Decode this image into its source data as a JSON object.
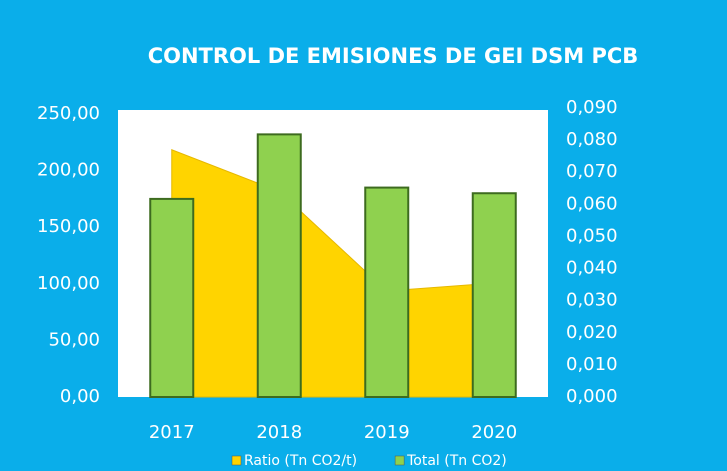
{
  "chart_data": {
    "type": "bar",
    "title": "CONTROL DE EMISIONES DE GEI DSM PCB",
    "categories": [
      "2017",
      "2018",
      "2019",
      "2020"
    ],
    "series": [
      {
        "name": "Ratio (Tn CO2/t)",
        "type": "area",
        "axis": "y2",
        "color": "#ffd400",
        "values": [
          0.077,
          0.064,
          0.033,
          0.0355
        ]
      },
      {
        "name": "Total (Tn CO2)",
        "type": "bar",
        "color": "#8fd14f",
        "values": [
          175,
          232,
          185,
          180
        ]
      }
    ],
    "ylim": [
      0,
      250
    ],
    "yticks": [
      {
        "value": 0,
        "label": "0,00"
      },
      {
        "value": 50,
        "label": "50,00"
      },
      {
        "value": 100,
        "label": "100,00"
      },
      {
        "value": 150,
        "label": "150,00"
      },
      {
        "value": 200,
        "label": "200,00"
      },
      {
        "value": 250,
        "label": "250,00"
      }
    ],
    "y2lim": [
      0,
      0.09
    ],
    "y2ticks": [
      {
        "value": 0,
        "label": "0,000"
      },
      {
        "value": 0.01,
        "label": "0,010"
      },
      {
        "value": 0.02,
        "label": "0,020"
      },
      {
        "value": 0.03,
        "label": "0,030"
      },
      {
        "value": 0.04,
        "label": "0,040"
      },
      {
        "value": 0.05,
        "label": "0,050"
      },
      {
        "value": 0.06,
        "label": "0,060"
      },
      {
        "value": 0.07,
        "label": "0,070"
      },
      {
        "value": 0.08,
        "label": "0,080"
      },
      {
        "value": 0.09,
        "label": "0,090"
      }
    ],
    "legend": "bottom"
  }
}
